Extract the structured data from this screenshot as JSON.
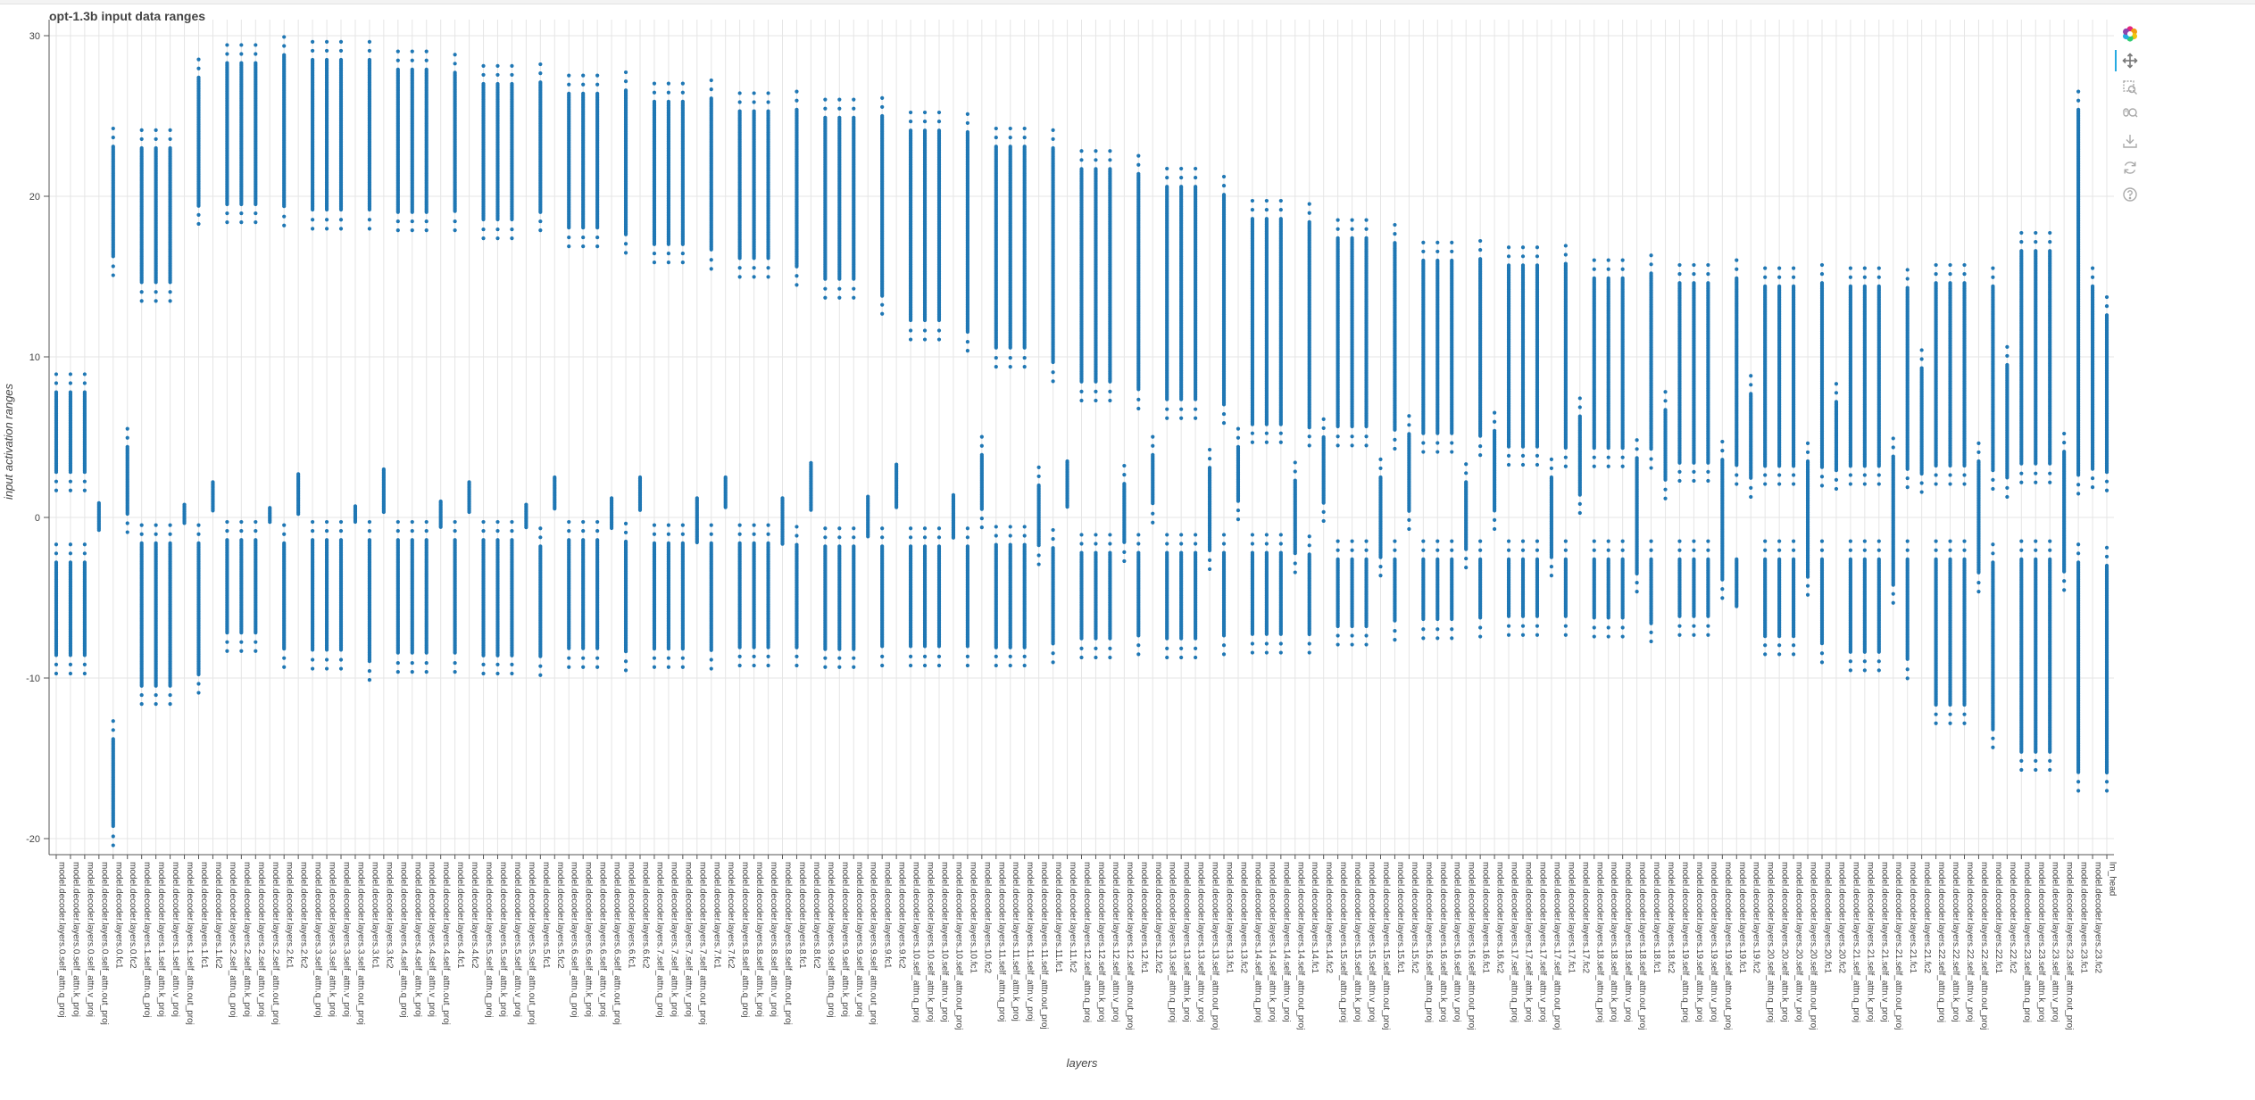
{
  "colors": {
    "points": "#1f77b4",
    "grid": "#e5e5e5",
    "axis": "#555555",
    "text": "#444444"
  },
  "toolbar": {
    "items": [
      {
        "name": "bokeh-logo-icon"
      },
      {
        "name": "pan-icon",
        "active": true
      },
      {
        "name": "box-zoom-icon"
      },
      {
        "name": "wheel-zoom-icon"
      },
      {
        "name": "save-icon"
      },
      {
        "name": "reset-icon"
      },
      {
        "name": "help-icon"
      }
    ]
  },
  "chart_data": {
    "type": "scatter",
    "title": "opt-1.3b input data ranges",
    "xlabel": "layers",
    "ylabel": "input activation ranges",
    "ylim": [
      -21,
      31
    ],
    "yticks": [
      -20,
      -10,
      0,
      10,
      20,
      30
    ],
    "grid": true,
    "legend": "none",
    "categories": [
      "model.decoder.layers.0.self_attn.q_proj",
      "model.decoder.layers.0.self_attn.k_proj",
      "model.decoder.layers.0.self_attn.v_proj",
      "model.decoder.layers.0.self_attn.out_proj",
      "model.decoder.layers.0.fc1",
      "model.decoder.layers.0.fc2",
      "model.decoder.layers.1.self_attn.q_proj",
      "model.decoder.layers.1.self_attn.k_proj",
      "model.decoder.layers.1.self_attn.v_proj",
      "model.decoder.layers.1.self_attn.out_proj",
      "model.decoder.layers.1.fc1",
      "model.decoder.layers.1.fc2",
      "model.decoder.layers.2.self_attn.q_proj",
      "model.decoder.layers.2.self_attn.k_proj",
      "model.decoder.layers.2.self_attn.v_proj",
      "model.decoder.layers.2.self_attn.out_proj",
      "model.decoder.layers.2.fc1",
      "model.decoder.layers.2.fc2",
      "model.decoder.layers.3.self_attn.q_proj",
      "model.decoder.layers.3.self_attn.k_proj",
      "model.decoder.layers.3.self_attn.v_proj",
      "model.decoder.layers.3.self_attn.out_proj",
      "model.decoder.layers.3.fc1",
      "model.decoder.layers.3.fc2",
      "model.decoder.layers.4.self_attn.q_proj",
      "model.decoder.layers.4.self_attn.k_proj",
      "model.decoder.layers.4.self_attn.v_proj",
      "model.decoder.layers.4.self_attn.out_proj",
      "model.decoder.layers.4.fc1",
      "model.decoder.layers.4.fc2",
      "model.decoder.layers.5.self_attn.q_proj",
      "model.decoder.layers.5.self_attn.k_proj",
      "model.decoder.layers.5.self_attn.v_proj",
      "model.decoder.layers.5.self_attn.out_proj",
      "model.decoder.layers.5.fc1",
      "model.decoder.layers.5.fc2",
      "model.decoder.layers.6.self_attn.q_proj",
      "model.decoder.layers.6.self_attn.k_proj",
      "model.decoder.layers.6.self_attn.v_proj",
      "model.decoder.layers.6.self_attn.out_proj",
      "model.decoder.layers.6.fc1",
      "model.decoder.layers.6.fc2",
      "model.decoder.layers.7.self_attn.q_proj",
      "model.decoder.layers.7.self_attn.k_proj",
      "model.decoder.layers.7.self_attn.v_proj",
      "model.decoder.layers.7.self_attn.out_proj",
      "model.decoder.layers.7.fc1",
      "model.decoder.layers.7.fc2",
      "model.decoder.layers.8.self_attn.q_proj",
      "model.decoder.layers.8.self_attn.k_proj",
      "model.decoder.layers.8.self_attn.v_proj",
      "model.decoder.layers.8.self_attn.out_proj",
      "model.decoder.layers.8.fc1",
      "model.decoder.layers.8.fc2",
      "model.decoder.layers.9.self_attn.q_proj",
      "model.decoder.layers.9.self_attn.k_proj",
      "model.decoder.layers.9.self_attn.v_proj",
      "model.decoder.layers.9.self_attn.out_proj",
      "model.decoder.layers.9.fc1",
      "model.decoder.layers.9.fc2",
      "model.decoder.layers.10.self_attn.q_proj",
      "model.decoder.layers.10.self_attn.k_proj",
      "model.decoder.layers.10.self_attn.v_proj",
      "model.decoder.layers.10.self_attn.out_proj",
      "model.decoder.layers.10.fc1",
      "model.decoder.layers.10.fc2",
      "model.decoder.layers.11.self_attn.q_proj",
      "model.decoder.layers.11.self_attn.k_proj",
      "model.decoder.layers.11.self_attn.v_proj",
      "model.decoder.layers.11.self_attn.out_proj",
      "model.decoder.layers.11.fc1",
      "model.decoder.layers.11.fc2",
      "model.decoder.layers.12.self_attn.q_proj",
      "model.decoder.layers.12.self_attn.k_proj",
      "model.decoder.layers.12.self_attn.v_proj",
      "model.decoder.layers.12.self_attn.out_proj",
      "model.decoder.layers.12.fc1",
      "model.decoder.layers.12.fc2",
      "model.decoder.layers.13.self_attn.q_proj",
      "model.decoder.layers.13.self_attn.k_proj",
      "model.decoder.layers.13.self_attn.v_proj",
      "model.decoder.layers.13.self_attn.out_proj",
      "model.decoder.layers.13.fc1",
      "model.decoder.layers.13.fc2",
      "model.decoder.layers.14.self_attn.q_proj",
      "model.decoder.layers.14.self_attn.k_proj",
      "model.decoder.layers.14.self_attn.v_proj",
      "model.decoder.layers.14.self_attn.out_proj",
      "model.decoder.layers.14.fc1",
      "model.decoder.layers.14.fc2",
      "model.decoder.layers.15.self_attn.q_proj",
      "model.decoder.layers.15.self_attn.k_proj",
      "model.decoder.layers.15.self_attn.v_proj",
      "model.decoder.layers.15.self_attn.out_proj",
      "model.decoder.layers.15.fc1",
      "model.decoder.layers.15.fc2",
      "model.decoder.layers.16.self_attn.q_proj",
      "model.decoder.layers.16.self_attn.k_proj",
      "model.decoder.layers.16.self_attn.v_proj",
      "model.decoder.layers.16.self_attn.out_proj",
      "model.decoder.layers.16.fc1",
      "model.decoder.layers.16.fc2",
      "model.decoder.layers.17.self_attn.q_proj",
      "model.decoder.layers.17.self_attn.k_proj",
      "model.decoder.layers.17.self_attn.v_proj",
      "model.decoder.layers.17.self_attn.out_proj",
      "model.decoder.layers.17.fc1",
      "model.decoder.layers.17.fc2",
      "model.decoder.layers.18.self_attn.q_proj",
      "model.decoder.layers.18.self_attn.k_proj",
      "model.decoder.layers.18.self_attn.v_proj",
      "model.decoder.layers.18.self_attn.out_proj",
      "model.decoder.layers.18.fc1",
      "model.decoder.layers.18.fc2",
      "model.decoder.layers.19.self_attn.q_proj",
      "model.decoder.layers.19.self_attn.k_proj",
      "model.decoder.layers.19.self_attn.v_proj",
      "model.decoder.layers.19.self_attn.out_proj",
      "model.decoder.layers.19.fc1",
      "model.decoder.layers.19.fc2",
      "model.decoder.layers.20.self_attn.q_proj",
      "model.decoder.layers.20.self_attn.k_proj",
      "model.decoder.layers.20.self_attn.v_proj",
      "model.decoder.layers.20.self_attn.out_proj",
      "model.decoder.layers.20.fc1",
      "model.decoder.layers.20.fc2",
      "model.decoder.layers.21.self_attn.q_proj",
      "model.decoder.layers.21.self_attn.k_proj",
      "model.decoder.layers.21.self_attn.v_proj",
      "model.decoder.layers.21.self_attn.out_proj",
      "model.decoder.layers.21.fc1",
      "model.decoder.layers.21.fc2",
      "model.decoder.layers.22.self_attn.q_proj",
      "model.decoder.layers.22.self_attn.k_proj",
      "model.decoder.layers.22.self_attn.v_proj",
      "model.decoder.layers.22.self_attn.out_proj",
      "model.decoder.layers.22.fc1",
      "model.decoder.layers.22.fc2",
      "model.decoder.layers.23.self_attn.q_proj",
      "model.decoder.layers.23.self_attn.k_proj",
      "model.decoder.layers.23.self_attn.v_proj",
      "model.decoder.layers.23.self_attn.out_proj",
      "model.decoder.layers.23.fc1",
      "model.decoder.layers.23.fc2",
      "lm_head"
    ],
    "column_pattern": [
      "attn",
      "attn",
      "attn",
      "out_proj",
      "fc1",
      "fc2"
    ],
    "layer_groups": [
      {
        "layer": 0,
        "attn": {
          "pos": [
            2.8,
            7.8
          ],
          "neg": [
            -2.8,
            -8.6
          ]
        },
        "out_proj": [
          -0.8,
          0.9
        ],
        "fc1": {
          "pos": [
            16.2,
            23.1
          ],
          "neg": [
            -13.8,
            -19.3
          ]
        },
        "fc2": [
          0.2,
          4.4
        ]
      },
      {
        "layer": 1,
        "attn": {
          "pos": [
            14.6,
            23.0
          ],
          "neg": [
            -1.6,
            -10.5
          ]
        },
        "out_proj": [
          -0.4,
          0.8
        ],
        "fc1": {
          "pos": [
            19.4,
            27.4
          ],
          "neg": [
            -1.6,
            -9.8
          ]
        },
        "fc2": [
          0.4,
          2.2
        ]
      },
      {
        "layer": 2,
        "attn": {
          "pos": [
            19.5,
            28.3
          ],
          "neg": [
            -1.4,
            -7.2
          ]
        },
        "out_proj": [
          -0.3,
          0.6
        ],
        "fc1": {
          "pos": [
            19.3,
            28.8
          ],
          "neg": [
            -1.6,
            -8.2
          ]
        },
        "fc2": [
          0.2,
          2.7
        ]
      },
      {
        "layer": 3,
        "attn": {
          "pos": [
            19.1,
            28.5
          ],
          "neg": [
            -1.4,
            -8.3
          ]
        },
        "out_proj": [
          -0.3,
          0.7
        ],
        "fc1": {
          "pos": [
            19.1,
            28.5
          ],
          "neg": [
            -1.4,
            -9.0
          ]
        },
        "fc2": [
          0.3,
          3.0
        ]
      },
      {
        "layer": 4,
        "attn": {
          "pos": [
            19.0,
            27.9
          ],
          "neg": [
            -1.4,
            -8.5
          ]
        },
        "out_proj": [
          -0.6,
          1.0
        ],
        "fc1": {
          "pos": [
            19.0,
            27.7
          ],
          "neg": [
            -1.4,
            -8.5
          ]
        },
        "fc2": [
          0.3,
          2.2
        ]
      },
      {
        "layer": 5,
        "attn": {
          "pos": [
            18.5,
            27.0
          ],
          "neg": [
            -1.4,
            -8.6
          ]
        },
        "out_proj": [
          -0.7,
          0.8
        ],
        "fc1": {
          "pos": [
            19.0,
            27.1
          ],
          "neg": [
            -1.8,
            -8.7
          ]
        },
        "fc2": [
          0.5,
          2.5
        ]
      },
      {
        "layer": 6,
        "attn": {
          "pos": [
            18.0,
            26.4
          ],
          "neg": [
            -1.4,
            -8.2
          ]
        },
        "out_proj": [
          -0.7,
          1.2
        ],
        "fc1": {
          "pos": [
            17.6,
            26.6
          ],
          "neg": [
            -1.5,
            -8.4
          ]
        },
        "fc2": [
          0.4,
          2.5
        ]
      },
      {
        "layer": 7,
        "attn": {
          "pos": [
            17.0,
            25.9
          ],
          "neg": [
            -1.6,
            -8.2
          ]
        },
        "out_proj": [
          -1.6,
          1.2
        ],
        "fc1": {
          "pos": [
            16.6,
            26.1
          ],
          "neg": [
            -1.6,
            -8.3
          ]
        },
        "fc2": [
          0.6,
          2.5
        ]
      },
      {
        "layer": 8,
        "attn": {
          "pos": [
            16.1,
            25.3
          ],
          "neg": [
            -1.6,
            -8.1
          ]
        },
        "out_proj": [
          -1.7,
          1.2
        ],
        "fc1": {
          "pos": [
            15.6,
            25.4
          ],
          "neg": [
            -1.7,
            -8.1
          ]
        },
        "fc2": [
          0.4,
          3.4
        ]
      },
      {
        "layer": 9,
        "attn": {
          "pos": [
            14.8,
            24.9
          ],
          "neg": [
            -1.8,
            -8.2
          ]
        },
        "out_proj": [
          -1.2,
          1.3
        ],
        "fc1": {
          "pos": [
            13.8,
            25.0
          ],
          "neg": [
            -1.8,
            -8.1
          ]
        },
        "fc2": [
          0.6,
          3.3
        ]
      },
      {
        "layer": 10,
        "attn": {
          "pos": [
            12.2,
            24.1
          ],
          "neg": [
            -1.8,
            -8.1
          ]
        },
        "out_proj": [
          -1.3,
          1.4
        ],
        "fc1": {
          "pos": [
            11.5,
            24.0
          ],
          "neg": [
            -1.8,
            -8.1
          ]
        },
        "fc2": [
          0.5,
          3.9
        ]
      },
      {
        "layer": 11,
        "attn": {
          "pos": [
            10.5,
            23.1
          ],
          "neg": [
            -1.7,
            -8.1
          ]
        },
        "out_proj": [
          -1.8,
          2.0
        ],
        "fc1": {
          "pos": [
            9.6,
            23.0
          ],
          "neg": [
            -1.9,
            -7.9
          ]
        },
        "fc2": [
          0.6,
          3.5
        ]
      },
      {
        "layer": 12,
        "attn": {
          "pos": [
            8.4,
            21.7
          ],
          "neg": [
            -2.2,
            -7.6
          ]
        },
        "out_proj": [
          -1.6,
          2.1
        ],
        "fc1": {
          "pos": [
            7.9,
            21.4
          ],
          "neg": [
            -2.2,
            -7.4
          ]
        },
        "fc2": [
          0.8,
          3.9
        ]
      },
      {
        "layer": 13,
        "attn": {
          "pos": [
            7.3,
            20.6
          ],
          "neg": [
            -2.2,
            -7.6
          ]
        },
        "out_proj": [
          -2.1,
          3.1
        ],
        "fc1": {
          "pos": [
            7.0,
            20.1
          ],
          "neg": [
            -2.2,
            -7.4
          ]
        },
        "fc2": [
          1.0,
          4.4
        ]
      },
      {
        "layer": 14,
        "attn": {
          "pos": [
            5.8,
            18.6
          ],
          "neg": [
            -2.2,
            -7.3
          ]
        },
        "out_proj": [
          -2.3,
          2.3
        ],
        "fc1": {
          "pos": [
            5.6,
            18.4
          ],
          "neg": [
            -2.3,
            -7.3
          ]
        },
        "fc2": [
          0.9,
          5.0
        ]
      },
      {
        "layer": 15,
        "attn": {
          "pos": [
            5.6,
            17.4
          ],
          "neg": [
            -2.6,
            -6.8
          ]
        },
        "out_proj": [
          -2.5,
          2.5
        ],
        "fc1": {
          "pos": [
            5.4,
            17.1
          ],
          "neg": [
            -2.6,
            -6.5
          ]
        },
        "fc2": [
          0.4,
          5.2
        ]
      },
      {
        "layer": 16,
        "attn": {
          "pos": [
            5.2,
            16.0
          ],
          "neg": [
            -2.6,
            -6.4
          ]
        },
        "out_proj": [
          -2.0,
          2.2
        ],
        "fc1": {
          "pos": [
            5.0,
            16.1
          ],
          "neg": [
            -2.6,
            -6.3
          ]
        },
        "fc2": [
          0.4,
          5.4
        ]
      },
      {
        "layer": 17,
        "attn": {
          "pos": [
            4.4,
            15.7
          ],
          "neg": [
            -2.6,
            -6.2
          ]
        },
        "out_proj": [
          -2.5,
          2.5
        ],
        "fc1": {
          "pos": [
            4.3,
            15.8
          ],
          "neg": [
            -2.6,
            -6.2
          ]
        },
        "fc2": [
          1.4,
          6.3
        ]
      },
      {
        "layer": 18,
        "attn": {
          "pos": [
            4.3,
            14.9
          ],
          "neg": [
            -2.6,
            -6.3
          ]
        },
        "out_proj": [
          -3.5,
          3.7
        ],
        "fc1": {
          "pos": [
            4.2,
            15.2
          ],
          "neg": [
            -2.6,
            -6.6
          ]
        },
        "fc2": [
          2.3,
          6.7
        ]
      },
      {
        "layer": 19,
        "attn": {
          "pos": [
            3.4,
            14.6
          ],
          "neg": [
            -2.6,
            -6.2
          ]
        },
        "out_proj": [
          -3.9,
          3.6
        ],
        "fc1": {
          "pos": [
            3.2,
            14.9
          ],
          "neg": [
            -2.6,
            -5.6
          ]
        },
        "fc2": [
          2.4,
          7.7
        ]
      },
      {
        "layer": 20,
        "attn": {
          "pos": [
            3.2,
            14.4
          ],
          "neg": [
            -2.6,
            -7.4
          ]
        },
        "out_proj": [
          -3.7,
          3.5
        ],
        "fc1": {
          "pos": [
            3.1,
            14.6
          ],
          "neg": [
            -2.6,
            -7.9
          ]
        },
        "fc2": [
          2.9,
          7.2
        ]
      },
      {
        "layer": 21,
        "attn": {
          "pos": [
            3.2,
            14.4
          ],
          "neg": [
            -2.6,
            -8.4
          ]
        },
        "out_proj": [
          -4.2,
          3.8
        ],
        "fc1": {
          "pos": [
            3.0,
            14.3
          ],
          "neg": [
            -2.6,
            -8.9
          ]
        },
        "fc2": [
          2.7,
          9.3
        ]
      },
      {
        "layer": 22,
        "attn": {
          "pos": [
            3.2,
            14.6
          ],
          "neg": [
            -2.6,
            -11.7
          ]
        },
        "out_proj": [
          -3.5,
          3.5
        ],
        "fc1": {
          "pos": [
            2.9,
            14.4
          ],
          "neg": [
            -2.8,
            -13.2
          ]
        },
        "fc2": [
          2.4,
          9.5
        ]
      },
      {
        "layer": 23,
        "attn": {
          "pos": [
            3.3,
            16.6
          ],
          "neg": [
            -2.6,
            -14.6
          ]
        },
        "out_proj": [
          -3.4,
          4.1
        ],
        "fc1": {
          "pos": [
            2.6,
            25.4
          ],
          "neg": [
            -2.8,
            -15.9
          ]
        },
        "fc2": [
          3.0,
          14.4
        ]
      },
      {
        "layer": "lm_head",
        "pos": [
          2.8,
          12.6
        ],
        "neg": [
          -3.0,
          -15.9
        ]
      }
    ]
  }
}
